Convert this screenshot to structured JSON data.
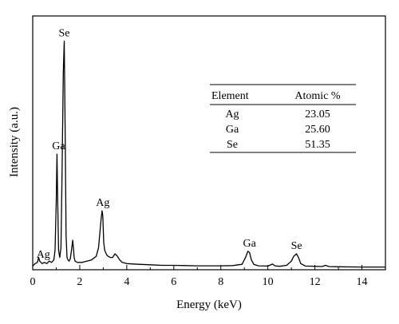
{
  "chart_data": {
    "type": "line",
    "xlabel": "Energy (keV)",
    "ylabel": "Intensity (a.u.)",
    "xlim": [
      0,
      15
    ],
    "ylim": [
      0,
      100
    ],
    "x_ticks": [
      0,
      2,
      4,
      6,
      8,
      10,
      12,
      14
    ],
    "x_tick_labels": [
      "0",
      "2",
      "4",
      "6",
      "8",
      "10",
      "12",
      "14"
    ],
    "y_ticks_shown": false,
    "grid": false,
    "series": [
      {
        "x": [
          0,
          0.1,
          0.2,
          0.25,
          0.3,
          0.4,
          0.5,
          0.6,
          0.7,
          0.8,
          0.9,
          0.95,
          1.0,
          1.03,
          1.06,
          1.1,
          1.15,
          1.2,
          1.25,
          1.3,
          1.34,
          1.38,
          1.42,
          1.46,
          1.5,
          1.55,
          1.6,
          1.65,
          1.7,
          1.73,
          1.76,
          1.8,
          1.9,
          2.1,
          2.3,
          2.5,
          2.7,
          2.8,
          2.9,
          2.95,
          2.98,
          3.02,
          3.06,
          3.1,
          3.15,
          3.2,
          3.3,
          3.4,
          3.5,
          3.6,
          3.7,
          3.8,
          4.0,
          4.5,
          5.0,
          5.5,
          6.0,
          6.5,
          7.0,
          7.5,
          8.0,
          8.5,
          8.9,
          9.05,
          9.15,
          9.22,
          9.3,
          9.4,
          9.6,
          10.0,
          10.2,
          10.3,
          10.5,
          10.8,
          11.0,
          11.1,
          11.22,
          11.3,
          11.4,
          11.6,
          12.0,
          12.3,
          12.45,
          12.6,
          13.0,
          14.0,
          15.0
        ],
        "values": [
          1.5,
          2.5,
          3,
          5,
          3.5,
          2.5,
          3,
          2.5,
          3.5,
          3,
          4,
          8,
          28,
          47,
          30,
          8,
          5,
          9,
          40,
          80,
          93,
          55,
          14,
          5,
          4,
          3.5,
          4.5,
          8,
          12,
          9,
          5,
          3.5,
          3,
          3,
          3.5,
          4,
          5.5,
          9,
          20,
          24,
          22,
          11,
          8,
          7,
          6,
          5.5,
          5,
          5,
          6.5,
          5.5,
          4,
          3,
          2.5,
          2.2,
          2,
          1.8,
          1.8,
          1.7,
          1.6,
          1.6,
          1.6,
          1.7,
          2.2,
          5,
          7.5,
          7,
          4,
          2.2,
          1.6,
          1.5,
          2.3,
          1.6,
          1.4,
          1.8,
          3.5,
          5.5,
          6.5,
          5,
          2.5,
          1.5,
          1.4,
          1.3,
          1.8,
          1.3,
          1.2,
          1.1,
          1.1
        ]
      }
    ],
    "annotations": [
      {
        "text": "Ag",
        "x": 0.45,
        "y": 3
      },
      {
        "text": "Ga",
        "x": 1.1,
        "y": 47
      },
      {
        "text": "Se",
        "x": 1.34,
        "y": 93
      },
      {
        "text": "Ag",
        "x": 2.98,
        "y": 24
      },
      {
        "text": "Ga",
        "x": 9.22,
        "y": 7.5
      },
      {
        "text": "Se",
        "x": 11.22,
        "y": 6.5
      }
    ]
  },
  "composition_table": {
    "headers": [
      "Element",
      "Atomic %"
    ],
    "rows": [
      [
        "Ag",
        "23.05"
      ],
      [
        "Ga",
        "25.60"
      ],
      [
        "Se",
        "51.35"
      ]
    ]
  }
}
